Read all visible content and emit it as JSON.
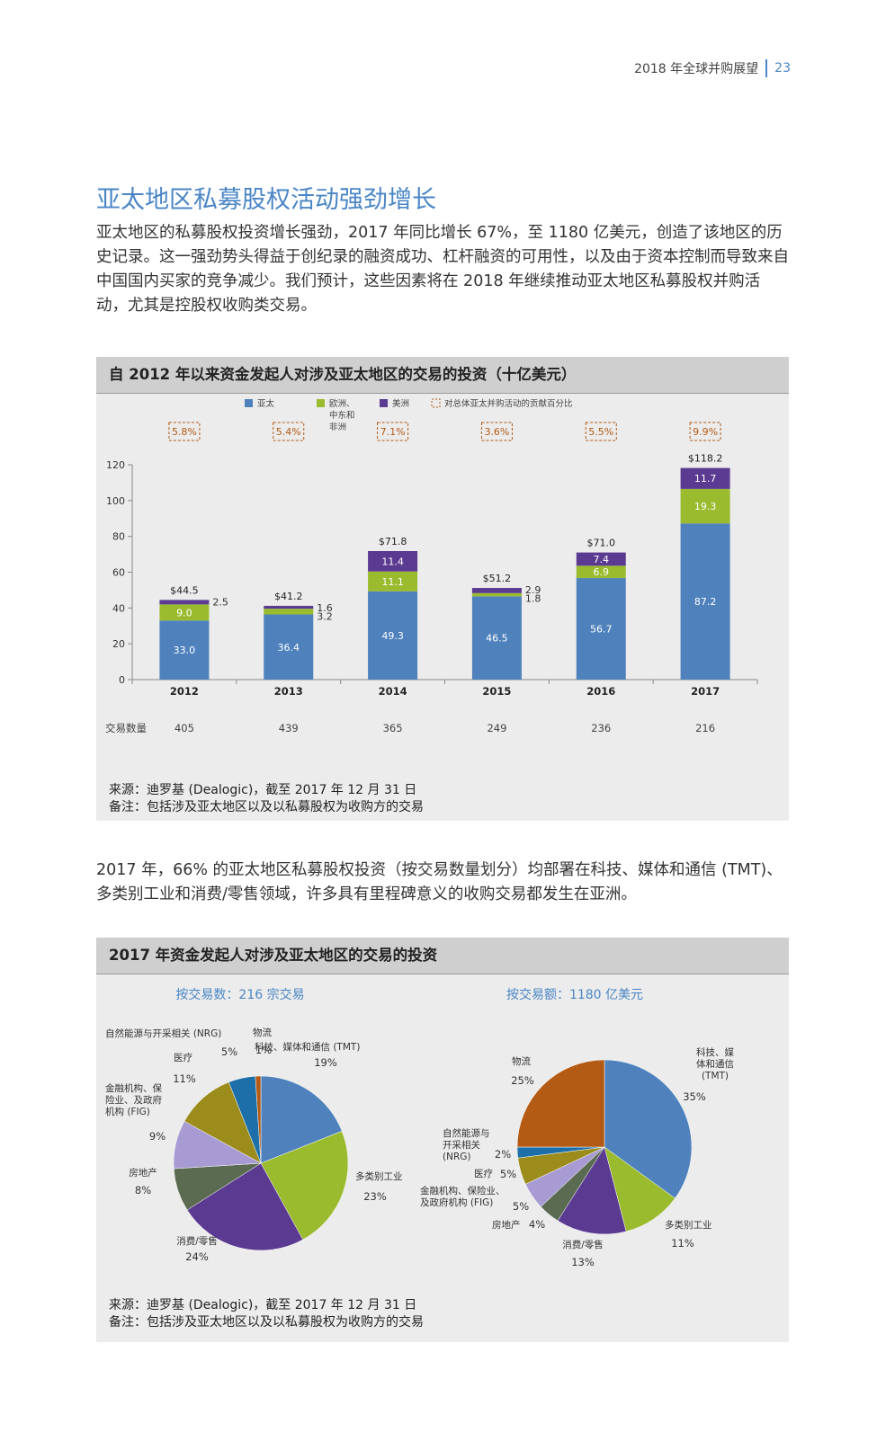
{
  "header": {
    "title": "2018 年全球并购展望",
    "page": "23"
  },
  "section_title": "亚太地区私募股权活动强劲增长",
  "intro": "亚太地区的私募股权投资增长强劲，2017 年同比增长 67%，至 1180 亿美元，创造了该地区的历史记录。这一强劲势头得益于创纪录的融资成功、杠杆融资的可用性，以及由于资本控制而导致来自中国国内买家的竞争减少。我们预计，这些因素将在 2018 年继续推动亚太地区私募股权并购活动，尤其是控股权收购类交易。",
  "panel1": {
    "title": "自 2012 年以来资金发起人对涉及亚太地区的交易的投资（十亿美元）",
    "source": "来源：迪罗基 (Dealogic)，截至 2017 年 12 月 31 日",
    "note": "备注：包括涉及亚太地区以及以私募股权为收购方的交易"
  },
  "para2": "2017 年，66% 的亚太地区私募股权投资（按交易数量划分）均部署在科技、媒体和通信 (TMT)、多类别工业和消费/零售领域，许多具有里程碑意义的收购交易都发生在亚洲。",
  "panel2": {
    "title": "2017 年资金发起人对涉及亚太地区的交易的投资",
    "source": "来源：迪罗基 (Dealogic)，截至 2017 年 12 月 31 日",
    "note": "备注：包括涉及亚太地区以及以私募股权为收购方的交易"
  },
  "chart_data": [
    {
      "type": "bar",
      "stacked": true,
      "title": "自 2012 年以来资金发起人对涉及亚太地区的交易的投资（十亿美元）",
      "categories": [
        "2012",
        "2013",
        "2014",
        "2015",
        "2016",
        "2017"
      ],
      "series": [
        {
          "name": "亚太",
          "color": "#4f82bd",
          "values": [
            33.0,
            36.4,
            49.3,
            46.5,
            56.7,
            87.2
          ],
          "labels": [
            "33.0",
            "36.4",
            "49.3",
            "46.5",
            "56.7",
            "87.2"
          ]
        },
        {
          "name": "欧洲、中东和非洲",
          "color": "#9bbb2f",
          "values": [
            9.0,
            3.2,
            11.1,
            1.8,
            6.9,
            19.3
          ],
          "labels": [
            "9.0",
            "3.2",
            "11.1",
            "1.8",
            "6.9",
            "19.3"
          ]
        },
        {
          "name": "美洲",
          "color": "#5b3a91",
          "values": [
            2.5,
            1.6,
            11.4,
            2.9,
            7.4,
            11.7
          ],
          "labels": [
            "2.5",
            "1.6",
            "11.4",
            "2.9",
            "7.4",
            "11.7"
          ]
        }
      ],
      "totals": [
        "$44.5",
        "$41.2",
        "$71.8",
        "$51.2",
        "$71.0",
        "$118.2"
      ],
      "contribution_legend": "对总体亚太并购活动的贡献百分比",
      "contribution": [
        "5.8%",
        "5.4%",
        "7.1%",
        "3.6%",
        "5.5%",
        "9.9%"
      ],
      "deal_count_label": "交易数量",
      "deal_counts": [
        "405",
        "439",
        "365",
        "249",
        "236",
        "216"
      ],
      "yticks": [
        "0",
        "20",
        "40",
        "60",
        "80",
        "100",
        "120"
      ],
      "ylim": [
        0,
        120
      ]
    },
    {
      "type": "pie",
      "title": "按交易数：216 宗交易",
      "slices": [
        {
          "name": "科技、媒体和通信 (TMT)",
          "value": 19,
          "label": "19%",
          "color": "#4f82bd"
        },
        {
          "name": "多类别工业",
          "value": 23,
          "label": "23%",
          "color": "#9bbb2f"
        },
        {
          "name": "消费/零售",
          "value": 24,
          "label": "24%",
          "color": "#5b3a91"
        },
        {
          "name": "房地产",
          "value": 8,
          "label": "8%",
          "color": "#5b6b52"
        },
        {
          "name": "金融机构、保险业、及政府机构 (FIG)",
          "value": 9,
          "label": "9%",
          "color": "#a89bd3"
        },
        {
          "name": "医疗",
          "value": 11,
          "label": "11%",
          "color": "#9b8c1c"
        },
        {
          "name": "自然能源与开采相关 (NRG)",
          "value": 5,
          "label": "5%",
          "color": "#1c6fa8"
        },
        {
          "name": "物流",
          "value": 1,
          "label": "1%",
          "color": "#b35a14"
        }
      ]
    },
    {
      "type": "pie",
      "title": "按交易额：1180 亿美元",
      "slices": [
        {
          "name": "科技、媒体和通信 (TMT)",
          "value": 35,
          "label": "35%",
          "color": "#4f82bd"
        },
        {
          "name": "多类别工业",
          "value": 11,
          "label": "11%",
          "color": "#9bbb2f"
        },
        {
          "name": "消费/零售",
          "value": 13,
          "label": "13%",
          "color": "#5b3a91"
        },
        {
          "name": "房地产",
          "value": 4,
          "label": "4%",
          "color": "#5b6b52"
        },
        {
          "name": "金融机构、保险业、及政府机构 (FIG)",
          "value": 5,
          "label": "5%",
          "color": "#a89bd3"
        },
        {
          "name": "医疗",
          "value": 5,
          "label": "5%",
          "color": "#9b8c1c"
        },
        {
          "name": "自然能源与开采相关 (NRG)",
          "value": 2,
          "label": "2%",
          "color": "#1c6fa8"
        },
        {
          "name": "物流",
          "value": 25,
          "label": "25%",
          "color": "#b35a14"
        }
      ]
    }
  ]
}
